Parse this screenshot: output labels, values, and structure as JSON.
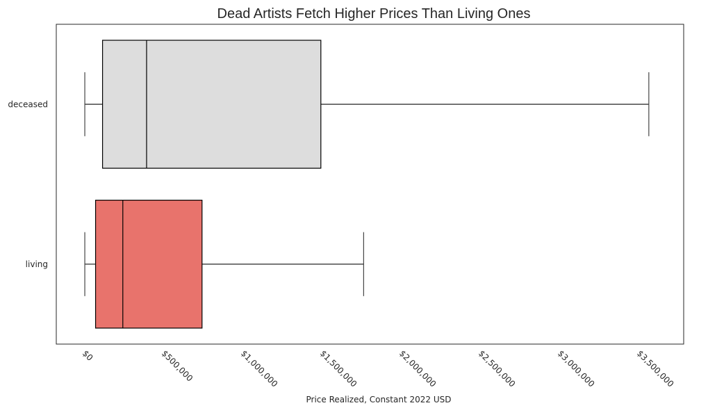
{
  "chart_data": {
    "type": "boxplot",
    "title": "Dead Artists Fetch Higher Prices Than Living Ones",
    "xlabel": "Price Realized, Constant 2022 USD",
    "ylabel": "",
    "xlim": [
      -180000,
      3780000
    ],
    "x_ticks": [
      0,
      500000,
      1000000,
      1500000,
      2000000,
      2500000,
      3000000,
      3500000
    ],
    "x_tick_labels": [
      "$0",
      "$500,000",
      "$1,000,000",
      "$1,500,000",
      "$2,000,000",
      "$2,500,000",
      "$3,000,000",
      "$3,500,000"
    ],
    "x_tick_rotation": 45,
    "grid": false,
    "categories": [
      "deceased",
      "living"
    ],
    "series": [
      {
        "category": "deceased",
        "whisker_low": 0,
        "q1": 112000,
        "median": 390000,
        "q3": 1490000,
        "whisker_high": 3560000,
        "color": "#dddddd"
      },
      {
        "category": "living",
        "whisker_low": 0,
        "q1": 68000,
        "median": 240000,
        "q3": 740000,
        "whisker_high": 1760000,
        "color": "#e8736c"
      }
    ]
  }
}
